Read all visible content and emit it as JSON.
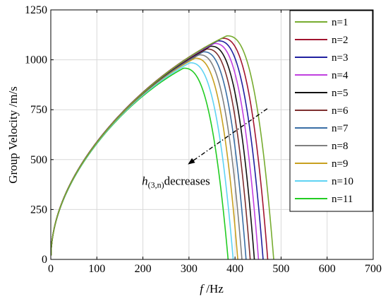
{
  "chart_data": {
    "type": "line",
    "title": "",
    "xlabel_italic": "f",
    "xlabel_unit": " /Hz",
    "ylabel": "Group Velocity /m/s",
    "xlim": [
      0,
      700
    ],
    "ylim": [
      0,
      1250
    ],
    "xticks": [
      0,
      100,
      200,
      300,
      400,
      500,
      600,
      700
    ],
    "yticks": [
      0,
      250,
      500,
      750,
      1000,
      1250
    ],
    "grid": true,
    "legend_position": "right",
    "series": [
      {
        "name": "n=1",
        "color": "#77AC30",
        "peak_x": 382,
        "peak_y": 1120,
        "end_x": 484,
        "drop_start_x": 455
      },
      {
        "name": "n=2",
        "color": "#A2142F",
        "peak_x": 372,
        "peak_y": 1108,
        "end_x": 471,
        "drop_start_x": 443
      },
      {
        "name": "n=3",
        "color": "#2020A0",
        "peak_x": 363,
        "peak_y": 1095,
        "end_x": 461,
        "drop_start_x": 433
      },
      {
        "name": "n=4",
        "color": "#C040E0",
        "peak_x": 355,
        "peak_y": 1082,
        "end_x": 451,
        "drop_start_x": 423
      },
      {
        "name": "n=5",
        "color": "#111111",
        "peak_x": 347,
        "peak_y": 1068,
        "end_x": 442,
        "drop_start_x": 414
      },
      {
        "name": "n=6",
        "color": "#7E2F2F",
        "peak_x": 339,
        "peak_y": 1054,
        "end_x": 433,
        "drop_start_x": 405
      },
      {
        "name": "n=7",
        "color": "#3A6EA5",
        "peak_x": 331,
        "peak_y": 1040,
        "end_x": 424,
        "drop_start_x": 396
      },
      {
        "name": "n=8",
        "color": "#808080",
        "peak_x": 322,
        "peak_y": 1025,
        "end_x": 415,
        "drop_start_x": 388
      },
      {
        "name": "n=9",
        "color": "#C8A020",
        "peak_x": 313,
        "peak_y": 1008,
        "end_x": 406,
        "drop_start_x": 379
      },
      {
        "name": "n=10",
        "color": "#5FD3F3",
        "peak_x": 302,
        "peak_y": 985,
        "end_x": 396,
        "drop_start_x": 370
      },
      {
        "name": "n=11",
        "color": "#22CC22",
        "peak_x": 288,
        "peak_y": 958,
        "end_x": 385,
        "drop_start_x": 359
      }
    ],
    "annotation": {
      "text_main": "h",
      "text_sub": "(3,n)",
      "text_after": "decreases",
      "arrow_from": [
        470,
        755
      ],
      "arrow_to": [
        300,
        480
      ],
      "text_at": [
        305,
        395
      ]
    }
  }
}
